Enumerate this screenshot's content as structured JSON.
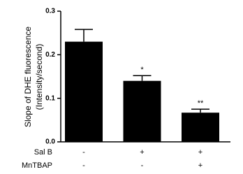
{
  "chart_data": {
    "type": "bar",
    "y_label": [
      "Slope of DHE fluorescence",
      "(Intensity/second)"
    ],
    "values": [
      0.23,
      0.14,
      0.067
    ],
    "errors": [
      0.028,
      0.012,
      0.008
    ],
    "significance": [
      null,
      "*",
      "**"
    ],
    "color": "#000000",
    "ylim": [
      0,
      0.3
    ],
    "yticks": [
      {
        "value": 0,
        "label": "0.0"
      },
      0.1,
      0.2,
      0.3
    ],
    "treatments": [
      {
        "name": "Sal B",
        "values": [
          "-",
          "+",
          "+"
        ]
      },
      {
        "name": "MnTBAP",
        "values": [
          "-",
          "-",
          "+"
        ]
      }
    ]
  }
}
